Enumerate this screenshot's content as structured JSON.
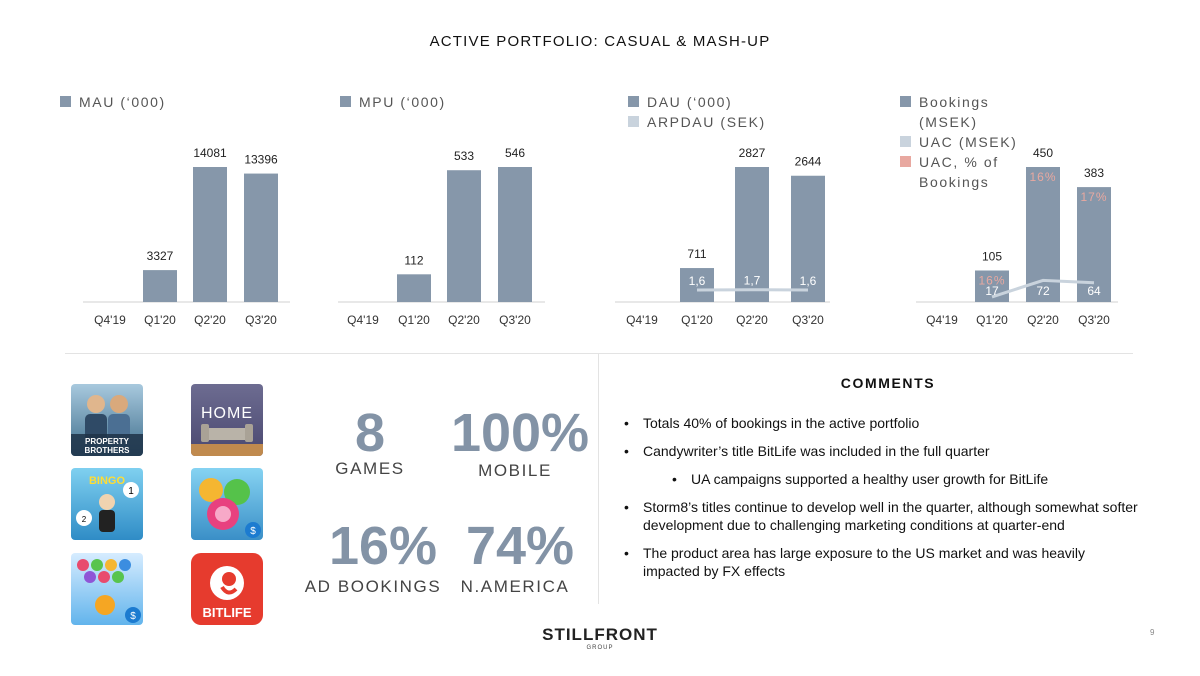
{
  "title": "ACTIVE PORTFOLIO: CASUAL & MASH-UP",
  "colors": {
    "bar": "#8697aa",
    "line": "#c9d3dd",
    "uac_pct": "#e8a8a0"
  },
  "chart_data": [
    {
      "type": "bar",
      "title": "",
      "legend": [
        "MAU (‘000)"
      ],
      "categories": [
        "Q4'19",
        "Q1'20",
        "Q2'20",
        "Q3'20"
      ],
      "series": [
        {
          "name": "MAU (‘000)",
          "values": [
            null,
            3327,
            14081,
            13396
          ],
          "labels": [
            "",
            "3327",
            "14081",
            "13396"
          ]
        }
      ]
    },
    {
      "type": "bar",
      "title": "",
      "legend": [
        "MPU (‘000)"
      ],
      "categories": [
        "Q4'19",
        "Q1'20",
        "Q2'20",
        "Q3'20"
      ],
      "series": [
        {
          "name": "MPU (‘000)",
          "values": [
            null,
            112,
            533,
            546
          ],
          "labels": [
            "",
            "112",
            "533",
            "546"
          ]
        }
      ]
    },
    {
      "type": "bar",
      "title": "",
      "legend": [
        "DAU (‘000)",
        "ARPDAU (SEK)"
      ],
      "categories": [
        "Q4'19",
        "Q1'20",
        "Q2'20",
        "Q3'20"
      ],
      "series": [
        {
          "name": "DAU (‘000)",
          "values": [
            null,
            711,
            2827,
            2644
          ],
          "labels": [
            "",
            "711",
            "2827",
            "2644"
          ]
        },
        {
          "name": "ARPDAU (SEK)",
          "type": "line",
          "values": [
            null,
            1.6,
            1.7,
            1.6
          ],
          "labels": [
            "",
            "1,6",
            "1,7",
            "1,6"
          ]
        }
      ]
    },
    {
      "type": "bar",
      "title": "",
      "legend": [
        "Bookings (MSEK)",
        "UAC (MSEK)",
        "UAC, % of Bookings"
      ],
      "categories": [
        "Q4'19",
        "Q1'20",
        "Q2'20",
        "Q3'20"
      ],
      "series": [
        {
          "name": "Bookings (MSEK)",
          "values": [
            null,
            105,
            450,
            383
          ],
          "labels": [
            "",
            "105",
            "450",
            "383"
          ]
        },
        {
          "name": "UAC (MSEK)",
          "type": "line",
          "values": [
            null,
            17,
            72,
            64
          ],
          "labels": [
            "",
            "17",
            "72",
            "64"
          ]
        },
        {
          "name": "UAC, % of Bookings",
          "values": [
            null,
            16,
            16,
            17
          ],
          "labels": [
            "",
            "16%",
            "16%",
            "17%"
          ]
        }
      ]
    }
  ],
  "icons": [
    {
      "name": "property-brothers-icon",
      "text": "PROPERTY BROTHERS"
    },
    {
      "name": "home-design-icon",
      "text": "HOME"
    },
    {
      "name": "monopoly-bingo-icon",
      "text": "BINGO"
    },
    {
      "name": "candy-match-icon",
      "text": ""
    },
    {
      "name": "bubble-shooter-icon",
      "text": ""
    },
    {
      "name": "bitlife-icon",
      "text": "BITLIFE"
    }
  ],
  "stats": [
    {
      "value": "8",
      "label": "GAMES"
    },
    {
      "value": "100%",
      "label": "MOBILE"
    },
    {
      "value": "16%",
      "label": "AD BOOKINGS"
    },
    {
      "value": "74%",
      "label": "N.AMERICA"
    }
  ],
  "comments": {
    "title": "COMMENTS",
    "items": [
      {
        "text": "Totals 40% of bookings in the active portfolio",
        "sub": false
      },
      {
        "text": "Candywriter’s title BitLife was included in the full quarter",
        "sub": false
      },
      {
        "text": "UA campaigns supported a healthy user growth for BitLife",
        "sub": true
      },
      {
        "text": "Storm8’s titles continue to develop well in the quarter, although somewhat softer development due to challenging marketing conditions at quarter-end",
        "sub": false
      },
      {
        "text": "The product area has large exposure to the US market and was heavily impacted by FX effects",
        "sub": false
      }
    ]
  },
  "logo": {
    "name": "STILLFRONT",
    "sub": "GROUP"
  },
  "page_number": "9"
}
